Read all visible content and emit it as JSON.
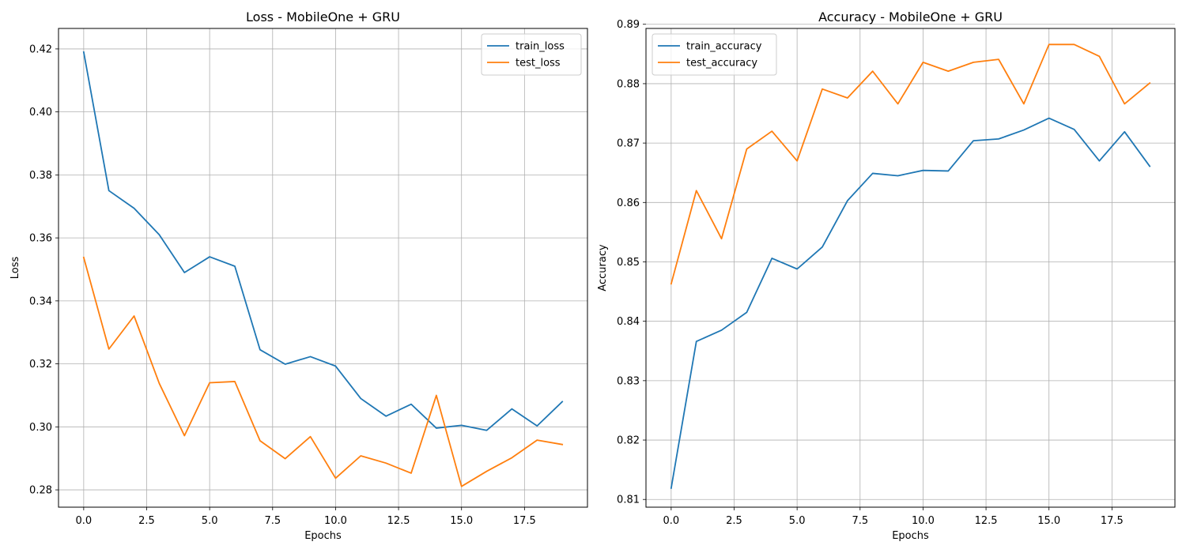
{
  "chart_data": [
    {
      "type": "line",
      "title": "Loss - MobileOne + GRU",
      "xlabel": "Epochs",
      "ylabel": "Loss",
      "xlim": [
        -1,
        20
      ],
      "ylim": [
        0.2745,
        0.4265
      ],
      "xticks": [
        0,
        2.5,
        5,
        7.5,
        10,
        12.5,
        15,
        17.5
      ],
      "xtick_labels": [
        "0.0",
        "2.5",
        "5.0",
        "7.5",
        "10.0",
        "12.5",
        "15.0",
        "17.5"
      ],
      "yticks": [
        0.28,
        0.3,
        0.32,
        0.34,
        0.36,
        0.38,
        0.4,
        0.42
      ],
      "ytick_labels": [
        "0.28",
        "0.30",
        "0.32",
        "0.34",
        "0.36",
        "0.38",
        "0.40",
        "0.42"
      ],
      "grid": true,
      "legend_position": "top-right",
      "x": [
        0,
        1,
        2,
        3,
        4,
        5,
        6,
        7,
        8,
        9,
        10,
        11,
        12,
        13,
        14,
        15,
        16,
        17,
        18,
        19
      ],
      "series": [
        {
          "name": "train_loss",
          "color": "#1f77b4",
          "values": [
            0.419,
            0.375,
            0.3694,
            0.361,
            0.349,
            0.354,
            0.351,
            0.3245,
            0.3199,
            0.3223,
            0.3193,
            0.309,
            0.3034,
            0.3072,
            0.2996,
            0.3005,
            0.2989,
            0.3057,
            0.3003,
            0.308
          ]
        },
        {
          "name": "test_loss",
          "color": "#ff7f0e",
          "values": [
            0.3538,
            0.3247,
            0.3352,
            0.3138,
            0.2972,
            0.314,
            0.3144,
            0.2956,
            0.2899,
            0.2969,
            0.2837,
            0.2908,
            0.2885,
            0.2853,
            0.31,
            0.2811,
            0.2859,
            0.2902,
            0.2958,
            0.2944
          ]
        }
      ]
    },
    {
      "type": "line",
      "title": "Accuracy - MobileOne + GRU",
      "xlabel": "Epochs",
      "ylabel": "Accuracy",
      "xlim": [
        -1,
        20
      ],
      "ylim": [
        0.8087,
        0.8893
      ],
      "xticks": [
        0,
        2.5,
        5,
        7.5,
        10,
        12.5,
        15,
        17.5
      ],
      "xtick_labels": [
        "0.0",
        "2.5",
        "5.0",
        "7.5",
        "10.0",
        "12.5",
        "15.0",
        "17.5"
      ],
      "yticks": [
        0.81,
        0.82,
        0.83,
        0.84,
        0.85,
        0.86,
        0.87,
        0.88,
        0.89
      ],
      "ytick_labels": [
        "0.81",
        "0.82",
        "0.83",
        "0.84",
        "0.85",
        "0.86",
        "0.87",
        "0.88",
        "0.89"
      ],
      "grid": true,
      "legend_position": "top-left",
      "x": [
        0,
        1,
        2,
        3,
        4,
        5,
        6,
        7,
        8,
        9,
        10,
        11,
        12,
        13,
        14,
        15,
        16,
        17,
        18,
        19
      ],
      "series": [
        {
          "name": "train_accuracy",
          "color": "#1f77b4",
          "values": [
            0.8119,
            0.8366,
            0.8385,
            0.8415,
            0.8506,
            0.8488,
            0.8525,
            0.8603,
            0.8649,
            0.8645,
            0.8654,
            0.8653,
            0.8704,
            0.8707,
            0.8722,
            0.8742,
            0.8723,
            0.867,
            0.8719,
            0.8661
          ]
        },
        {
          "name": "test_accuracy",
          "color": "#ff7f0e",
          "values": [
            0.8463,
            0.862,
            0.8539,
            0.869,
            0.872,
            0.867,
            0.8791,
            0.8776,
            0.8821,
            0.8766,
            0.8836,
            0.8821,
            0.8836,
            0.8841,
            0.8766,
            0.8866,
            0.8866,
            0.8846,
            0.8766,
            0.8801
          ]
        }
      ]
    }
  ]
}
